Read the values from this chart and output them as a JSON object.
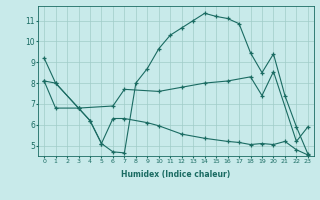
{
  "xlabel": "Humidex (Indice chaleur)",
  "xlim": [
    -0.5,
    23.5
  ],
  "ylim": [
    4.5,
    11.7
  ],
  "xticks": [
    0,
    1,
    2,
    3,
    4,
    5,
    6,
    7,
    8,
    9,
    10,
    11,
    12,
    13,
    14,
    15,
    16,
    17,
    18,
    19,
    20,
    21,
    22,
    23
  ],
  "yticks": [
    5,
    6,
    7,
    8,
    9,
    10,
    11
  ],
  "bg_color": "#c8eaea",
  "line_color": "#1a6b62",
  "grid_color": "#a0ccc8",
  "line1_x": [
    0,
    1,
    3,
    4,
    5,
    6,
    7,
    8,
    9,
    10,
    11,
    12,
    13,
    14,
    15,
    16,
    17,
    18,
    19,
    20,
    21,
    22,
    23
  ],
  "line1_y": [
    9.2,
    8.0,
    6.8,
    6.2,
    5.1,
    4.7,
    4.65,
    8.0,
    8.7,
    9.65,
    10.3,
    10.65,
    11.0,
    11.35,
    11.2,
    11.1,
    10.85,
    9.45,
    8.5,
    9.4,
    7.4,
    5.9,
    4.6
  ],
  "line2_x": [
    0,
    1,
    3,
    6,
    7,
    10,
    12,
    14,
    16,
    18,
    19,
    20,
    22,
    23
  ],
  "line2_y": [
    8.1,
    8.0,
    6.8,
    6.9,
    7.7,
    7.6,
    7.8,
    8.0,
    8.1,
    8.3,
    7.4,
    8.55,
    5.2,
    5.9
  ],
  "line3_x": [
    0,
    1,
    3,
    4,
    5,
    6,
    7,
    9,
    10,
    12,
    14,
    16,
    17,
    18,
    19,
    20,
    21,
    22,
    23
  ],
  "line3_y": [
    8.1,
    6.8,
    6.8,
    6.2,
    5.1,
    6.3,
    6.3,
    6.1,
    5.95,
    5.55,
    5.35,
    5.2,
    5.15,
    5.05,
    5.1,
    5.05,
    5.2,
    4.8,
    4.55
  ]
}
